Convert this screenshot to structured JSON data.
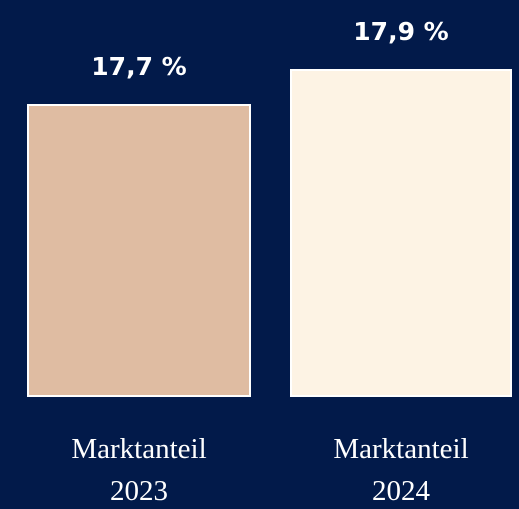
{
  "chart_data": {
    "type": "bar",
    "categories": [
      "Marktanteil 2023",
      "Marktanteil 2024"
    ],
    "values": [
      17.7,
      17.9
    ],
    "value_labels": [
      "17,7 %",
      "17,9 %"
    ],
    "colors": [
      "#dfbca2",
      "#fdf3e4"
    ],
    "ylim": [
      16,
      18
    ]
  }
}
